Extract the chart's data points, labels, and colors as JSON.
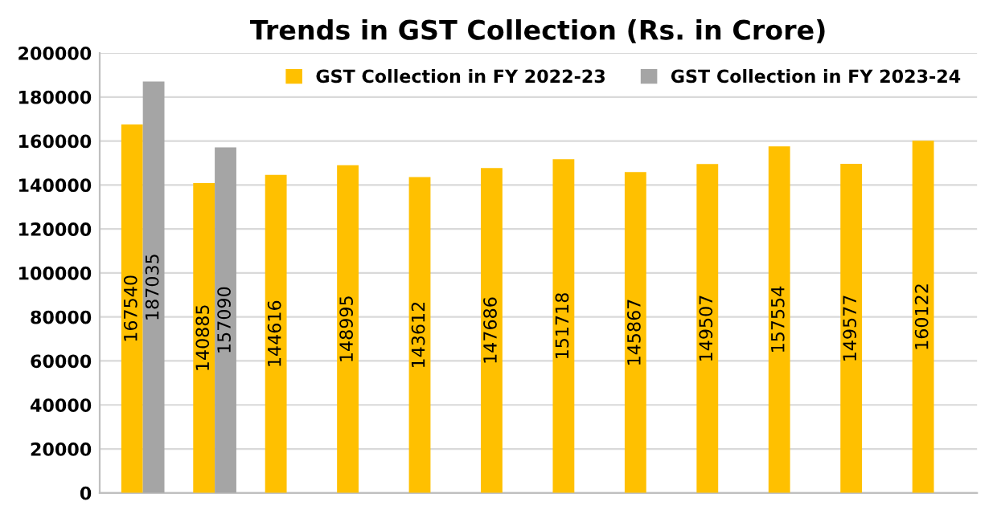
{
  "chart_data": {
    "type": "bar",
    "title": "Trends in GST Collection (Rs. in Crore)",
    "categories": [
      null,
      null,
      null,
      null,
      null,
      null,
      null,
      null,
      null,
      null,
      null,
      null
    ],
    "series": [
      {
        "name": "GST Collection in FY 2022-23",
        "color": "#ffc000",
        "values": [
          167540,
          140885,
          144616,
          148995,
          143612,
          147686,
          151718,
          145867,
          149507,
          157554,
          149577,
          160122
        ]
      },
      {
        "name": "GST Collection in FY 2023-24",
        "color": "#a5a5a5",
        "values": [
          187035,
          157090,
          null,
          null,
          null,
          null,
          null,
          null,
          null,
          null,
          null,
          null
        ]
      }
    ],
    "ylim": [
      0,
      200000
    ],
    "yticks": [
      0,
      20000,
      40000,
      60000,
      80000,
      100000,
      120000,
      140000,
      160000,
      180000,
      200000
    ],
    "grid": "y",
    "legend": "top right",
    "data_labels": true
  }
}
